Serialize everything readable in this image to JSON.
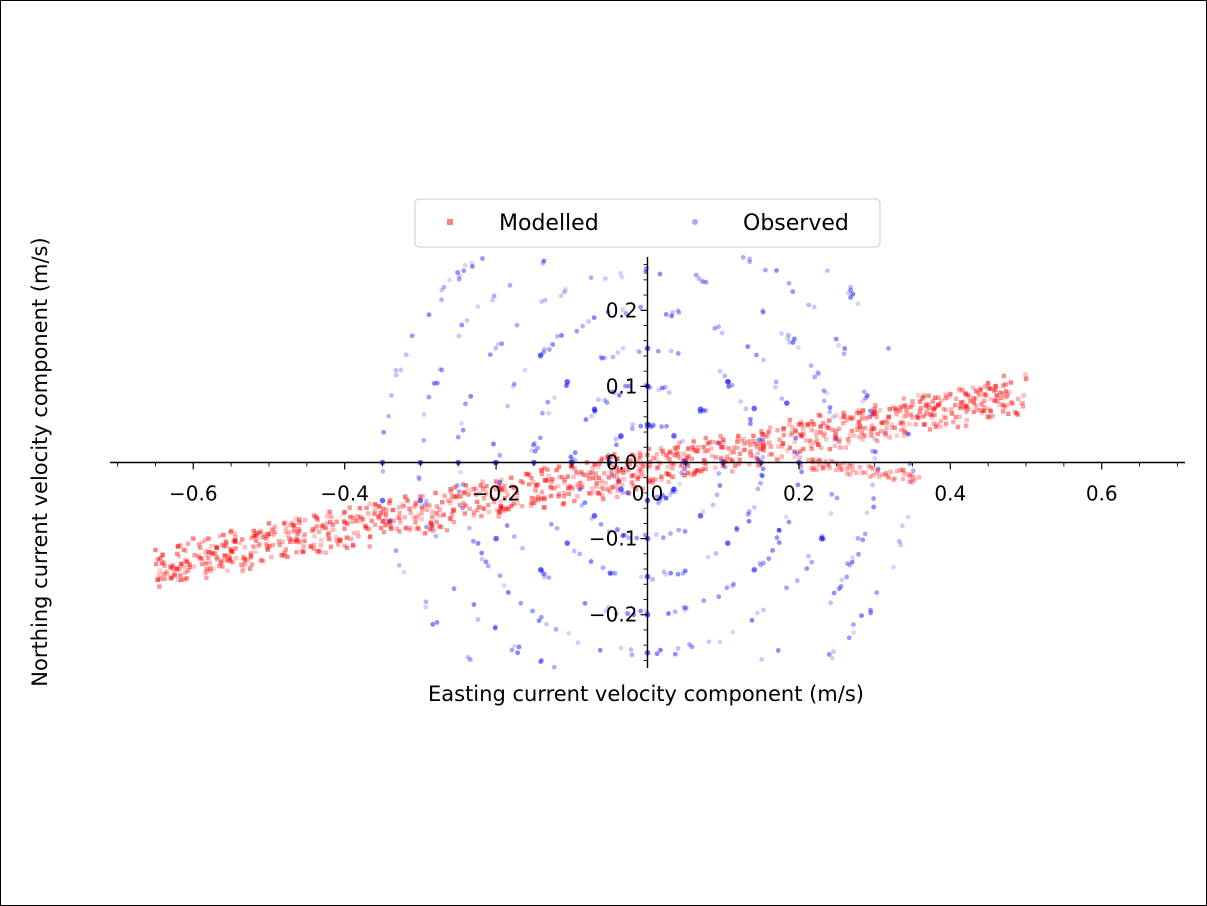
{
  "chart_data": {
    "type": "scatter",
    "xlabel": "Easting current velocity component (m/s)",
    "ylabel": "Northing current velocity component (m/s)",
    "xlim": [
      -0.71,
      0.71
    ],
    "ylim": [
      -0.27,
      0.27
    ],
    "x_ticks": [
      -0.6,
      -0.4,
      -0.2,
      0.0,
      0.2,
      0.4,
      0.6
    ],
    "x_tick_labels": [
      "−0.6",
      "−0.4",
      "−0.2",
      "0.0",
      "0.2",
      "0.4",
      "0.6"
    ],
    "y_ticks": [
      -0.2,
      -0.1,
      0.0,
      0.1,
      0.2
    ],
    "y_tick_labels": [
      "−0.2",
      "−0.1",
      "0.0",
      "0.1",
      "0.2"
    ],
    "grid": false,
    "spines": "centered",
    "legend_position": "top-center",
    "series": [
      {
        "name": "Modelled",
        "color": "#ff0000",
        "marker": "square",
        "opacity": 0.35,
        "points": [
          [
            -0.65,
            -0.115
          ],
          [
            -0.62,
            -0.11
          ],
          [
            -0.6,
            -0.1
          ],
          [
            -0.58,
            -0.1
          ],
          [
            -0.56,
            -0.095
          ],
          [
            -0.55,
            -0.09
          ],
          [
            -0.52,
            -0.09
          ],
          [
            -0.5,
            -0.08
          ],
          [
            -0.48,
            -0.08
          ],
          [
            -0.46,
            -0.075
          ],
          [
            -0.44,
            -0.07
          ],
          [
            -0.42,
            -0.065
          ],
          [
            -0.4,
            -0.065
          ],
          [
            -0.38,
            -0.06
          ],
          [
            -0.36,
            -0.055
          ],
          [
            -0.34,
            -0.05
          ],
          [
            -0.32,
            -0.045
          ],
          [
            -0.3,
            -0.045
          ],
          [
            -0.28,
            -0.04
          ],
          [
            -0.26,
            -0.035
          ],
          [
            -0.24,
            -0.03
          ],
          [
            -0.22,
            -0.03
          ],
          [
            -0.2,
            -0.025
          ],
          [
            -0.18,
            -0.02
          ],
          [
            -0.16,
            -0.015
          ],
          [
            -0.14,
            -0.01
          ],
          [
            -0.12,
            -0.01
          ],
          [
            -0.1,
            -0.005
          ],
          [
            -0.08,
            0.0
          ],
          [
            -0.06,
            0.005
          ],
          [
            -0.04,
            0.005
          ],
          [
            -0.02,
            0.01
          ],
          [
            0.0,
            0.01
          ],
          [
            0.02,
            0.015
          ],
          [
            0.04,
            0.02
          ],
          [
            0.06,
            0.02
          ],
          [
            0.08,
            0.025
          ],
          [
            0.1,
            0.03
          ],
          [
            0.12,
            0.035
          ],
          [
            0.14,
            0.035
          ],
          [
            0.16,
            0.04
          ],
          [
            0.18,
            0.045
          ],
          [
            0.2,
            0.05
          ],
          [
            0.22,
            0.05
          ],
          [
            0.24,
            0.055
          ],
          [
            0.26,
            0.06
          ],
          [
            0.28,
            0.065
          ],
          [
            0.3,
            0.07
          ],
          [
            0.32,
            0.07
          ],
          [
            0.34,
            0.075
          ],
          [
            0.36,
            0.08
          ],
          [
            0.38,
            0.085
          ],
          [
            0.4,
            0.09
          ],
          [
            0.42,
            0.09
          ],
          [
            0.44,
            0.095
          ],
          [
            0.46,
            0.1
          ],
          [
            0.48,
            0.105
          ],
          [
            0.5,
            0.11
          ]
        ]
      },
      {
        "name": "Observed",
        "color": "#0000ff",
        "marker": "circle",
        "opacity": 0.25,
        "rings": [
          0.05,
          0.1,
          0.15,
          0.2,
          0.25,
          0.3,
          0.35
        ],
        "points": [
          [
            0.0,
            0.05
          ],
          [
            0.035,
            0.035
          ],
          [
            0.05,
            0.0
          ],
          [
            0.035,
            -0.035
          ],
          [
            0.0,
            -0.05
          ],
          [
            -0.035,
            -0.035
          ],
          [
            -0.05,
            0.0
          ],
          [
            -0.035,
            0.035
          ],
          [
            0.0,
            0.1
          ],
          [
            0.07,
            0.07
          ],
          [
            0.1,
            0.0
          ],
          [
            0.07,
            -0.07
          ],
          [
            0.0,
            -0.1
          ],
          [
            -0.07,
            -0.07
          ],
          [
            -0.1,
            0.0
          ],
          [
            -0.07,
            0.07
          ],
          [
            0.0,
            0.15
          ],
          [
            0.106,
            0.106
          ],
          [
            0.15,
            0.0
          ],
          [
            0.106,
            -0.106
          ],
          [
            0.0,
            -0.15
          ],
          [
            -0.106,
            -0.106
          ],
          [
            -0.15,
            0.0
          ],
          [
            -0.106,
            0.106
          ],
          [
            0.141,
            0.071
          ],
          [
            0.184,
            0.078
          ],
          [
            0.2,
            0.0
          ],
          [
            0.141,
            -0.141
          ],
          [
            0.0,
            -0.2
          ],
          [
            -0.141,
            -0.141
          ],
          [
            -0.2,
            0.0
          ],
          [
            -0.141,
            0.141
          ],
          [
            0.23,
            -0.1
          ],
          [
            0.0,
            -0.25
          ],
          [
            -0.25,
            0.0
          ],
          [
            -0.2,
            -0.1
          ],
          [
            -0.3,
            0.0
          ],
          [
            -0.3,
            -0.05
          ],
          [
            -0.35,
            0.0
          ],
          [
            -0.35,
            -0.05
          ]
        ]
      }
    ]
  }
}
